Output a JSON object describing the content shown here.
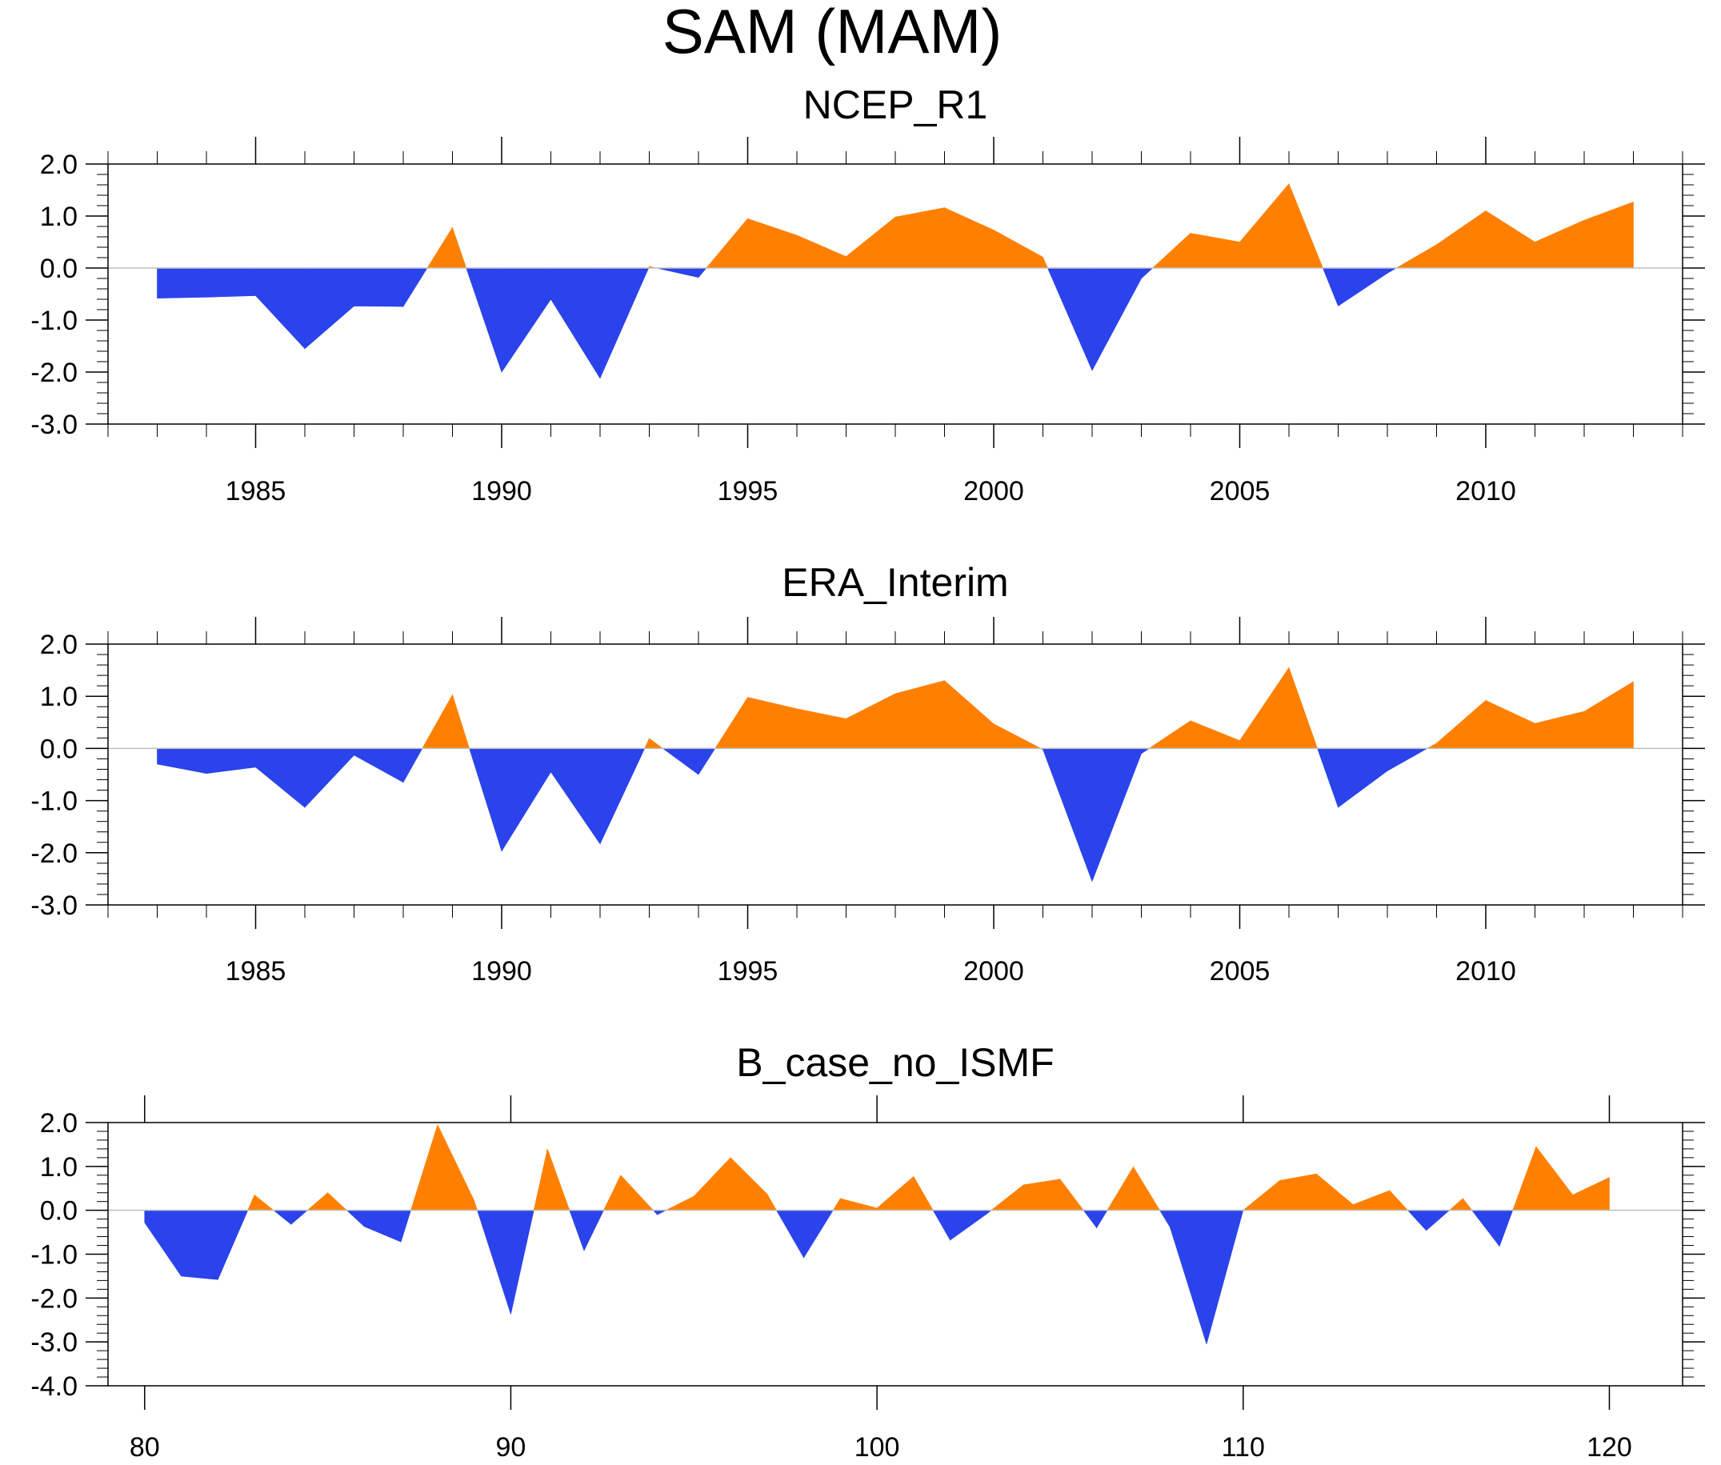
{
  "title": "SAM (MAM)",
  "colors": {
    "positive": "#FF8000",
    "negative": "#2A43EB",
    "axis": "#000000",
    "zero_line": "#BFBFBF"
  },
  "chart_data": [
    {
      "type": "area",
      "title": "NCEP_R1",
      "xlabel": "",
      "ylabel": "",
      "xlim": [
        1982,
        2014
      ],
      "ylim": [
        -3.0,
        2.0
      ],
      "x_ticks": [
        1985,
        1990,
        1995,
        2000,
        2005,
        2010
      ],
      "x_tick_labels": [
        "1985",
        "1990",
        "1995",
        "2000",
        "2005",
        "2010"
      ],
      "y_ticks": [
        -3.0,
        -2.0,
        -1.0,
        0.0,
        1.0,
        2.0
      ],
      "y_tick_labels": [
        "-3.0",
        "-2.0",
        "-1.0",
        "0.0",
        "1.0",
        "2.0"
      ],
      "x_minor_step": 1,
      "y_minor_step": 0.2,
      "top_axis": "major-ticks-only",
      "x": [
        1983,
        1984,
        1985,
        1986,
        1987,
        1988,
        1989,
        1990,
        1991,
        1992,
        1993,
        1994,
        1995,
        1996,
        1997,
        1998,
        1999,
        2000,
        2001,
        2002,
        2003,
        2004,
        2005,
        2006,
        2007,
        2008,
        2009,
        2010,
        2011,
        2012,
        2013
      ],
      "values": [
        -0.58,
        -0.56,
        -0.53,
        -1.55,
        -0.73,
        -0.74,
        0.78,
        -2.0,
        -0.6,
        -2.12,
        0.03,
        -0.18,
        0.95,
        0.63,
        0.22,
        0.98,
        1.16,
        0.73,
        0.21,
        -1.97,
        -0.2,
        0.67,
        0.5,
        1.62,
        -0.73,
        -0.1,
        0.45,
        1.1,
        0.5,
        0.92,
        1.27
      ]
    },
    {
      "type": "area",
      "title": "ERA_Interim",
      "xlabel": "",
      "ylabel": "",
      "xlim": [
        1982,
        2014
      ],
      "ylim": [
        -3.0,
        2.0
      ],
      "x_ticks": [
        1985,
        1990,
        1995,
        2000,
        2005,
        2010
      ],
      "x_tick_labels": [
        "1985",
        "1990",
        "1995",
        "2000",
        "2005",
        "2010"
      ],
      "y_ticks": [
        -3.0,
        -2.0,
        -1.0,
        0.0,
        1.0,
        2.0
      ],
      "y_tick_labels": [
        "-3.0",
        "-2.0",
        "-1.0",
        "0.0",
        "1.0",
        "2.0"
      ],
      "x_minor_step": 1,
      "y_minor_step": 0.2,
      "top_axis": "major-ticks-only",
      "x": [
        1983,
        1984,
        1985,
        1986,
        1987,
        1988,
        1989,
        1990,
        1991,
        1992,
        1993,
        1994,
        1995,
        1996,
        1997,
        1998,
        1999,
        2000,
        2001,
        2002,
        2003,
        2004,
        2005,
        2006,
        2007,
        2008,
        2009,
        2010,
        2011,
        2012,
        2013
      ],
      "values": [
        -0.3,
        -0.48,
        -0.36,
        -1.13,
        -0.13,
        -0.65,
        1.03,
        -1.97,
        -0.45,
        -1.83,
        0.19,
        -0.5,
        0.98,
        0.76,
        0.57,
        1.05,
        1.3,
        0.47,
        -0.02,
        -2.55,
        -0.1,
        0.53,
        0.15,
        1.55,
        -1.13,
        -0.43,
        0.1,
        0.92,
        0.48,
        0.71,
        1.28
      ]
    },
    {
      "type": "area",
      "title": "B_case_no_ISMF",
      "xlabel": "",
      "ylabel": "",
      "xlim": [
        79,
        122
      ],
      "ylim": [
        -4.0,
        2.0
      ],
      "x_ticks": [
        80,
        90,
        100,
        110,
        120
      ],
      "x_tick_labels": [
        "80",
        "90",
        "100",
        "110",
        "120"
      ],
      "y_ticks": [
        -4.0,
        -3.0,
        -2.0,
        -1.0,
        0.0,
        1.0,
        2.0
      ],
      "y_tick_labels": [
        "-4.0",
        "-3.0",
        "-2.0",
        "-1.0",
        "0.0",
        "1.0",
        "2.0"
      ],
      "x_minor_step": 2,
      "y_minor_step": 0.2,
      "top_axis": "major-and-minor-ticks",
      "x": [
        80,
        81,
        82,
        83,
        84,
        85,
        86,
        87,
        88,
        89,
        90,
        91,
        92,
        93,
        94,
        95,
        96,
        97,
        98,
        99,
        100,
        101,
        102,
        103,
        104,
        105,
        106,
        107,
        108,
        109,
        110,
        111,
        112,
        113,
        114,
        115,
        116,
        117,
        118,
        119,
        120
      ],
      "values": [
        -0.28,
        -1.5,
        -1.58,
        0.35,
        -0.32,
        0.4,
        -0.37,
        -0.72,
        1.95,
        0.22,
        -2.37,
        1.4,
        -0.92,
        0.8,
        -0.1,
        0.32,
        1.2,
        0.37,
        -1.08,
        0.27,
        0.05,
        0.77,
        -0.68,
        -0.08,
        0.58,
        0.71,
        -0.4,
        0.99,
        -0.38,
        -3.05,
        0.0,
        0.68,
        0.83,
        0.13,
        0.45,
        -0.46,
        0.27,
        -0.82,
        1.45,
        0.35,
        0.75
      ]
    }
  ]
}
